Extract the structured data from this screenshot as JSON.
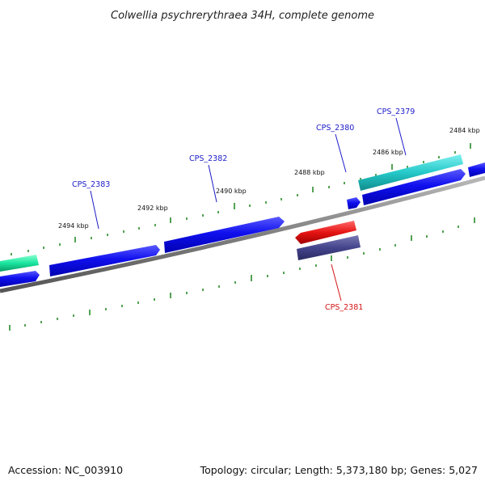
{
  "title": "Colwellia psychrerythraea 34H, complete genome",
  "footer": {
    "accession": "Accession: NC_003910",
    "summary": "Topology: circular; Length: 5,373,180 bp; Genes: 5,027"
  },
  "tick_labels": [
    "2484 kbp",
    "2486 kbp",
    "2488 kbp",
    "2490 kbp",
    "2492 kbp",
    "2494 kbp"
  ],
  "genes": [
    {
      "name": "CPS_2379",
      "color": "#1c1cc8"
    },
    {
      "name": "CPS_2380",
      "color": "#1c1cc8"
    },
    {
      "name": "CPS_2381",
      "color": "#d41414"
    },
    {
      "name": "CPS_2382",
      "color": "#1c1cc8"
    },
    {
      "name": "CPS_2383",
      "color": "#1c1cc8"
    }
  ],
  "colors": {
    "cds_blue": "#0a0ae6",
    "rna_cyan": "#22c8c8",
    "rna_green": "#19e6a0",
    "reverse_red": "#e61414",
    "reverse_purple": "#44448c",
    "backbone": "#808080",
    "tick_green": "#2a8a2a"
  }
}
